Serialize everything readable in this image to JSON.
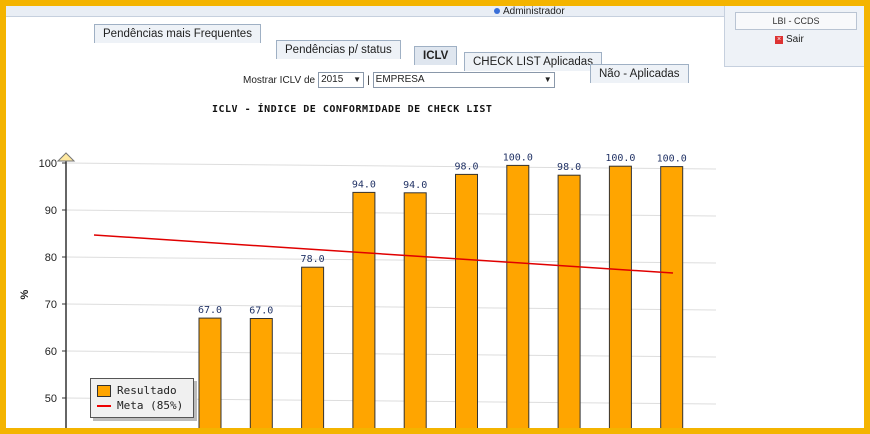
{
  "header": {
    "user": "Administrador",
    "org": "LBI - CCDS",
    "logout": "Sair"
  },
  "tabs": [
    {
      "label": "Pendências mais Frequentes"
    },
    {
      "label": "Pendências p/ status"
    },
    {
      "label": "ICLV",
      "active": true
    },
    {
      "label": "CHECK LIST Aplicadas"
    },
    {
      "label": "Não - Aplicadas"
    }
  ],
  "filter": {
    "label": "Mostrar ICLV de",
    "year": "2015",
    "company": "EMPRESA"
  },
  "chart_title": "ICLV - ÍNDICE DE CONFORMIDADE DE CHECK LIST",
  "chart_data": {
    "type": "bar",
    "ylabel": "%",
    "yticks": [
      50,
      60,
      70,
      80,
      90,
      100
    ],
    "ylim": [
      45,
      100
    ],
    "values": [
      67.0,
      67.0,
      78.0,
      94.0,
      94.0,
      98.0,
      100.0,
      98.0,
      100.0,
      100.0
    ],
    "series": [
      {
        "name": "Resultado",
        "values": [
          67.0,
          67.0,
          78.0,
          94.0,
          94.0,
          98.0,
          100.0,
          98.0,
          100.0,
          100.0
        ],
        "color": "#ffa500"
      },
      {
        "name": "Meta (85%)",
        "color": "#e00000"
      }
    ]
  },
  "legend": {
    "result": "Resultado",
    "meta": "Meta (85%)"
  }
}
